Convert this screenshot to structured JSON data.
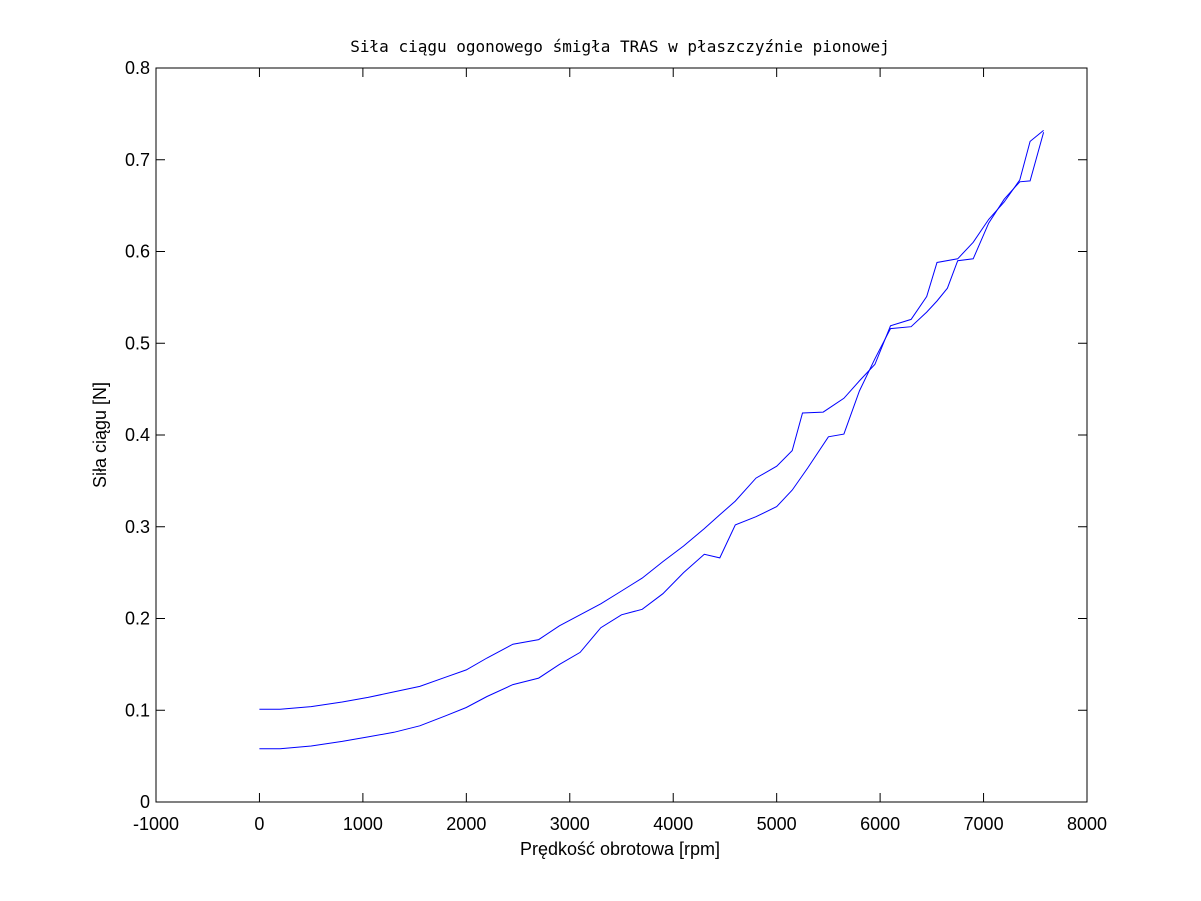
{
  "chart_data": {
    "type": "line",
    "title": "Siła ciągu ogonowego śmigła TRAS w płaszczyźnie pionowej",
    "xlabel": "Prędkość obrotowa [rpm]",
    "ylabel": "Siła ciągu [N]",
    "xlim": [
      -1000,
      8000
    ],
    "ylim": [
      0,
      0.8
    ],
    "xticks": [
      -1000,
      0,
      1000,
      2000,
      3000,
      4000,
      5000,
      6000,
      7000,
      8000
    ],
    "yticks": [
      0,
      0.1,
      0.2,
      0.3,
      0.4,
      0.5,
      0.6,
      0.7,
      0.8
    ],
    "xtick_labels": [
      "-1000",
      "0",
      "1000",
      "2000",
      "3000",
      "4000",
      "5000",
      "6000",
      "7000",
      "8000"
    ],
    "ytick_labels": [
      "0",
      "0.1",
      "0.2",
      "0.3",
      "0.4",
      "0.5",
      "0.6",
      "0.7",
      "0.8"
    ],
    "grid": false,
    "color": "#0000ff",
    "series": [
      {
        "x": [
          0,
          200,
          500,
          800,
          1050,
          1300,
          1550,
          1800,
          2000,
          2200,
          2450,
          2700,
          2900,
          3100,
          3300,
          3500,
          3700,
          3900,
          4100,
          4300,
          4450,
          4600,
          4800,
          5000,
          5150,
          5300,
          5500,
          5650,
          5800,
          5950,
          6100,
          6300,
          6450,
          6550,
          6650,
          6750,
          6900,
          7050,
          7200,
          7350,
          7450,
          7580
        ],
        "y": [
          0.058,
          0.058,
          0.061,
          0.066,
          0.071,
          0.076,
          0.083,
          0.094,
          0.103,
          0.115,
          0.128,
          0.135,
          0.15,
          0.163,
          0.19,
          0.204,
          0.21,
          0.227,
          0.25,
          0.27,
          0.266,
          0.302,
          0.311,
          0.322,
          0.34,
          0.364,
          0.398,
          0.401,
          0.448,
          0.483,
          0.516,
          0.518,
          0.534,
          0.546,
          0.56,
          0.59,
          0.592,
          0.631,
          0.657,
          0.676,
          0.677,
          0.73
        ]
      },
      {
        "x": [
          0,
          200,
          500,
          800,
          1050,
          1300,
          1550,
          1800,
          2000,
          2200,
          2450,
          2700,
          2900,
          3100,
          3300,
          3500,
          3700,
          3900,
          4100,
          4300,
          4450,
          4600,
          4800,
          5000,
          5150,
          5250,
          5450,
          5650,
          5800,
          5950,
          6100,
          6300,
          6450,
          6550,
          6750,
          6900,
          7050,
          7200,
          7350,
          7450,
          7580
        ],
        "y": [
          0.101,
          0.101,
          0.104,
          0.109,
          0.114,
          0.12,
          0.126,
          0.136,
          0.144,
          0.157,
          0.172,
          0.177,
          0.192,
          0.204,
          0.216,
          0.23,
          0.244,
          0.262,
          0.279,
          0.298,
          0.313,
          0.328,
          0.353,
          0.366,
          0.383,
          0.424,
          0.425,
          0.44,
          0.459,
          0.477,
          0.519,
          0.526,
          0.551,
          0.588,
          0.592,
          0.61,
          0.635,
          0.654,
          0.678,
          0.72,
          0.732
        ]
      }
    ]
  }
}
